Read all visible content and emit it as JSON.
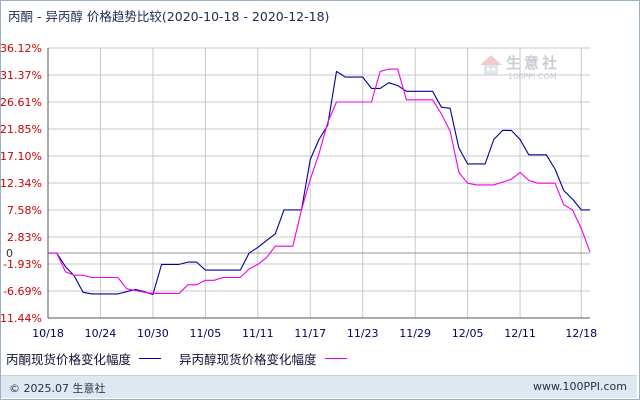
{
  "chart_data": {
    "type": "line",
    "title": "丙酮 - 异丙醇 价格趋势比较(2020-10-18 - 2020-12-18)",
    "xlabel": "",
    "ylabel": "",
    "ylim": [
      -11.44,
      36.12
    ],
    "y_ticks": [
      "36.12%",
      "31.37%",
      "26.61%",
      "21.85%",
      "17.10%",
      "12.34%",
      "7.58%",
      "2.83%",
      "-1.93%",
      "-6.69%",
      "-11.44%"
    ],
    "y_tick_values": [
      36.12,
      31.37,
      26.61,
      21.85,
      17.1,
      12.34,
      7.58,
      2.83,
      -1.93,
      -6.69,
      -11.44
    ],
    "x_ticks": [
      "10/18",
      "10/24",
      "10/30",
      "11/05",
      "11/11",
      "11/17",
      "11/23",
      "11/29",
      "12/05",
      "12/11",
      "12/18"
    ],
    "x_tick_days": [
      0,
      6,
      12,
      18,
      24,
      30,
      36,
      42,
      48,
      54,
      61
    ],
    "zero_line": "0",
    "grid": true,
    "legend_position": "bottom-left",
    "series": [
      {
        "name": "丙酮现货价格变化幅度",
        "color": "#000099",
        "points": [
          [
            0,
            0.0
          ],
          [
            1,
            0.0
          ],
          [
            2,
            -2.4
          ],
          [
            3,
            -4.0
          ],
          [
            4,
            -6.9
          ],
          [
            5,
            -7.2
          ],
          [
            6,
            -7.2
          ],
          [
            7,
            -7.2
          ],
          [
            8,
            -7.2
          ],
          [
            9,
            -6.8
          ],
          [
            10,
            -6.4
          ],
          [
            11,
            -6.8
          ],
          [
            12,
            -7.3
          ],
          [
            13,
            -2.0
          ],
          [
            14,
            -2.0
          ],
          [
            15,
            -2.0
          ],
          [
            16,
            -1.6
          ],
          [
            17,
            -1.6
          ],
          [
            18,
            -3.0
          ],
          [
            19,
            -3.0
          ],
          [
            20,
            -3.0
          ],
          [
            21,
            -3.0
          ],
          [
            22,
            -3.0
          ],
          [
            23,
            0.0
          ],
          [
            24,
            1.0
          ],
          [
            25,
            2.2
          ],
          [
            26,
            3.4
          ],
          [
            27,
            7.6
          ],
          [
            28,
            7.6
          ],
          [
            29,
            7.6
          ],
          [
            30,
            16.5
          ],
          [
            31,
            20.0
          ],
          [
            32,
            22.5
          ],
          [
            33,
            32.0
          ],
          [
            34,
            31.0
          ],
          [
            35,
            31.0
          ],
          [
            36,
            31.0
          ],
          [
            37,
            29.0
          ],
          [
            38,
            29.0
          ],
          [
            39,
            30.0
          ],
          [
            40,
            29.5
          ],
          [
            41,
            28.5
          ],
          [
            42,
            28.5
          ],
          [
            43,
            28.5
          ],
          [
            44,
            28.5
          ],
          [
            45,
            25.7
          ],
          [
            46,
            25.5
          ],
          [
            47,
            18.5
          ],
          [
            48,
            15.7
          ],
          [
            49,
            15.7
          ],
          [
            50,
            15.7
          ],
          [
            51,
            20.0
          ],
          [
            52,
            21.6
          ],
          [
            53,
            21.6
          ],
          [
            54,
            20.0
          ],
          [
            55,
            17.3
          ],
          [
            56,
            17.3
          ],
          [
            57,
            17.3
          ],
          [
            58,
            14.8
          ],
          [
            59,
            11.0
          ],
          [
            60,
            9.5
          ],
          [
            61,
            7.6
          ],
          [
            62,
            7.6
          ]
        ]
      },
      {
        "name": "异丙醇现货价格变化幅度",
        "color": "#ee00ee",
        "points": [
          [
            0,
            0.0
          ],
          [
            1,
            0.0
          ],
          [
            2,
            -3.3
          ],
          [
            3,
            -3.9
          ],
          [
            4,
            -3.9
          ],
          [
            5,
            -4.3
          ],
          [
            6,
            -4.3
          ],
          [
            7,
            -4.3
          ],
          [
            8,
            -4.3
          ],
          [
            9,
            -6.3
          ],
          [
            10,
            -6.6
          ],
          [
            11,
            -6.9
          ],
          [
            12,
            -7.1
          ],
          [
            13,
            -7.1
          ],
          [
            14,
            -7.1
          ],
          [
            15,
            -7.1
          ],
          [
            16,
            -5.6
          ],
          [
            17,
            -5.6
          ],
          [
            18,
            -4.8
          ],
          [
            19,
            -4.8
          ],
          [
            20,
            -4.3
          ],
          [
            21,
            -4.3
          ],
          [
            22,
            -4.3
          ],
          [
            23,
            -2.8
          ],
          [
            24,
            -2.0
          ],
          [
            25,
            -0.8
          ],
          [
            26,
            1.2
          ],
          [
            27,
            1.2
          ],
          [
            28,
            1.2
          ],
          [
            29,
            7.6
          ],
          [
            30,
            13.0
          ],
          [
            31,
            17.5
          ],
          [
            32,
            23.0
          ],
          [
            33,
            26.6
          ],
          [
            34,
            26.6
          ],
          [
            35,
            26.6
          ],
          [
            36,
            26.6
          ],
          [
            37,
            26.6
          ],
          [
            38,
            32.0
          ],
          [
            39,
            32.4
          ],
          [
            40,
            32.4
          ],
          [
            41,
            27.0
          ],
          [
            42,
            27.0
          ],
          [
            43,
            27.0
          ],
          [
            44,
            27.0
          ],
          [
            45,
            24.5
          ],
          [
            46,
            21.5
          ],
          [
            47,
            14.2
          ],
          [
            48,
            12.3
          ],
          [
            49,
            12.0
          ],
          [
            50,
            12.0
          ],
          [
            51,
            12.0
          ],
          [
            52,
            12.5
          ],
          [
            53,
            13.0
          ],
          [
            54,
            14.2
          ],
          [
            55,
            12.8
          ],
          [
            56,
            12.3
          ],
          [
            57,
            12.3
          ],
          [
            58,
            12.3
          ],
          [
            59,
            8.5
          ],
          [
            60,
            7.6
          ],
          [
            61,
            4.3
          ],
          [
            62,
            0.2
          ]
        ]
      }
    ]
  },
  "footer": {
    "copyright": "© 2025.07 生意社",
    "url": "www.100PPI.com"
  },
  "watermark": {
    "name": "生意社",
    "url": "100PPI.COM"
  },
  "colors": {
    "grid": "#c8c8c8",
    "axis": "#555555",
    "y_tick_text": "#cc0000",
    "x_tick_text": "#000066"
  }
}
